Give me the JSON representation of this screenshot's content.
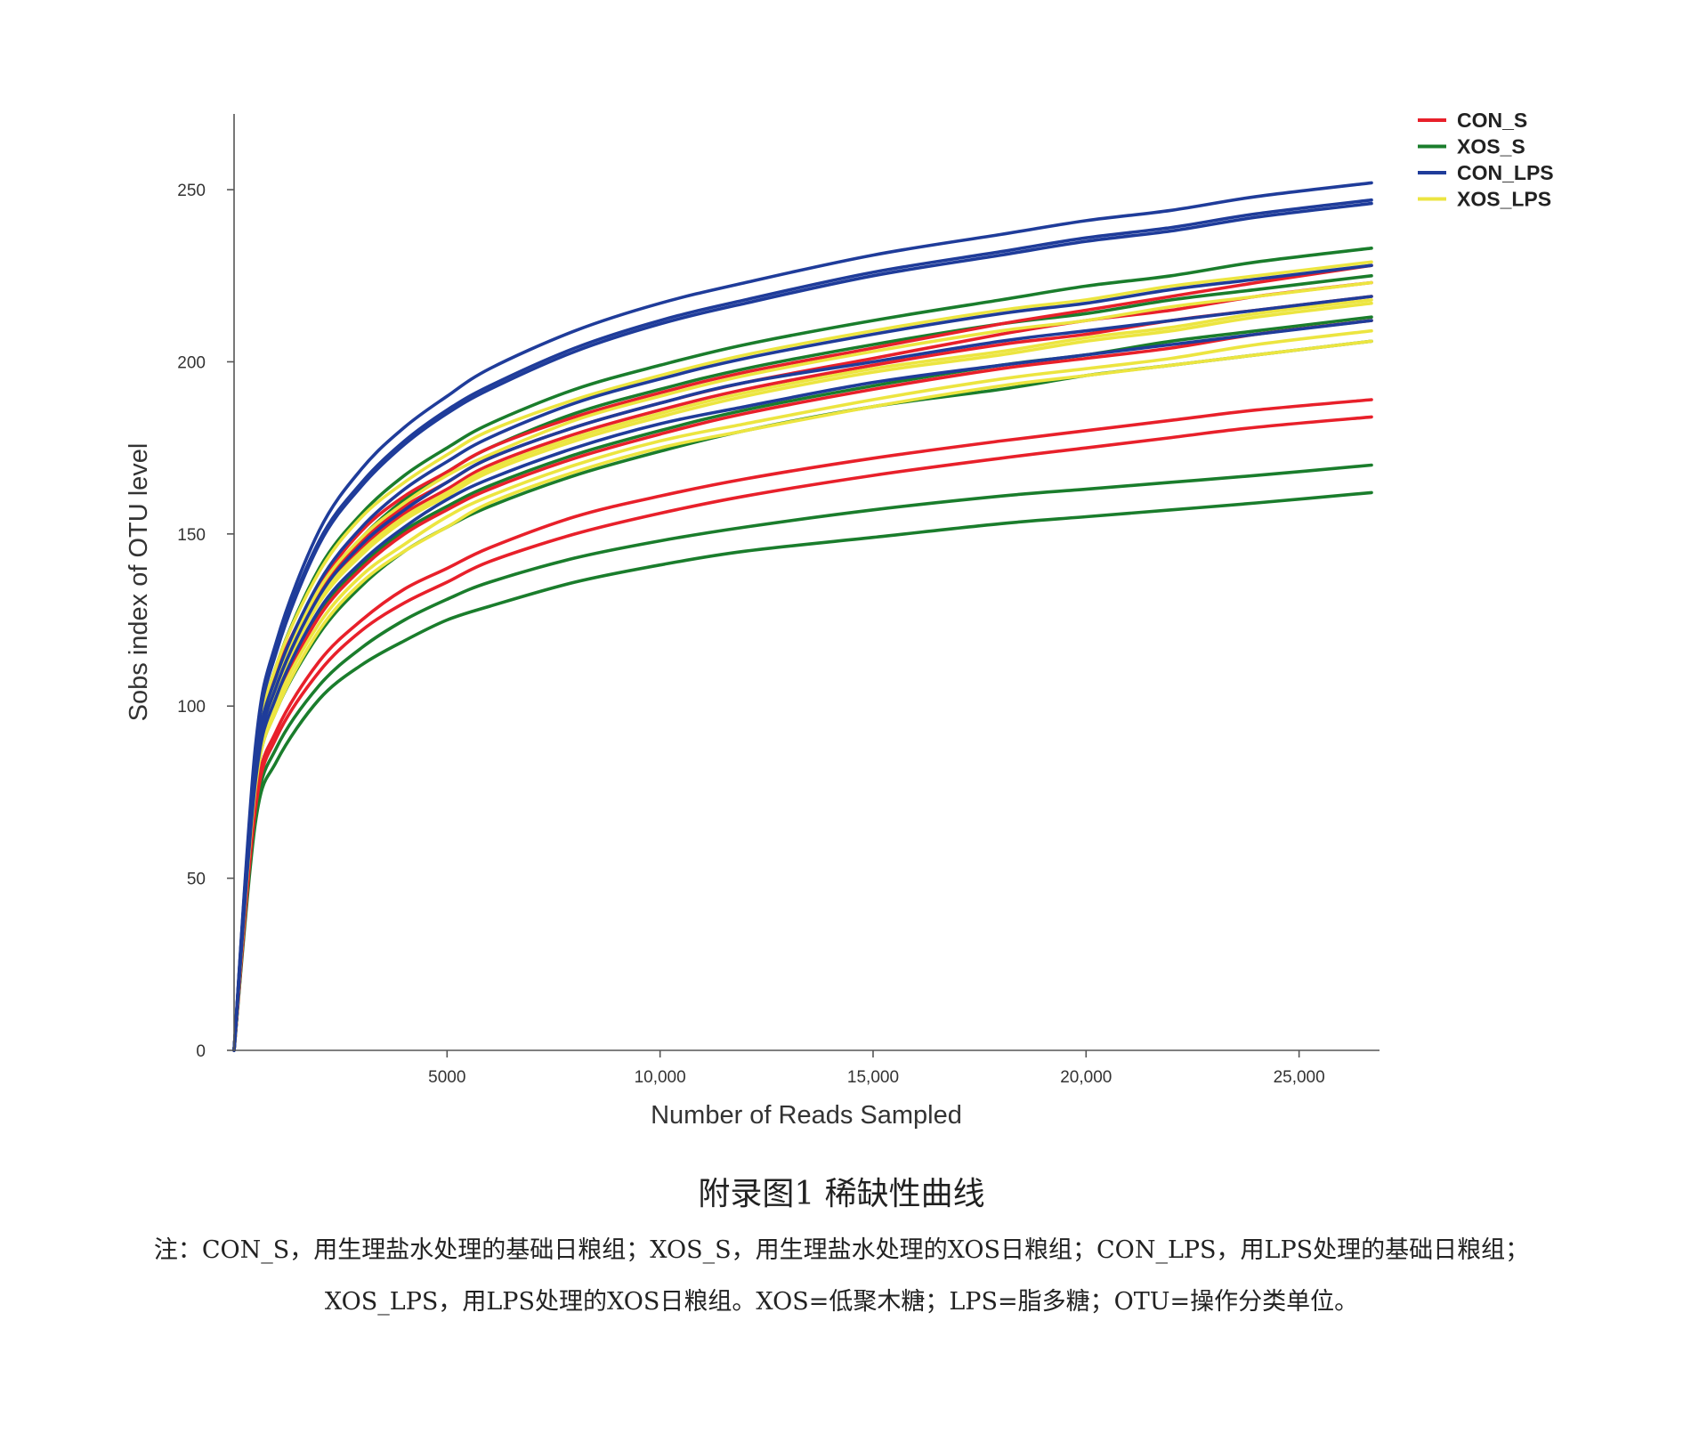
{
  "colors": {
    "CON_S": "#e8202a",
    "XOS_S": "#1a7d2c",
    "CON_LPS": "#1f3c9a",
    "XOS_LPS": "#ece540"
  },
  "chart_data": {
    "type": "line",
    "title": "",
    "xlabel": "Number of Reads Sampled",
    "ylabel": "Sobs index of OTU level",
    "xlim": [
      0,
      27000
    ],
    "ylim": [
      0,
      272
    ],
    "x_ticks": [
      5000,
      10000,
      15000,
      20000,
      25000
    ],
    "x_tick_labels": [
      "5000",
      "10,000",
      "15,000",
      "20,000",
      "25,000"
    ],
    "y_ticks": [
      0,
      50,
      100,
      150,
      200,
      250
    ],
    "y_tick_labels": [
      "0",
      "50",
      "100",
      "150",
      "200",
      "250"
    ],
    "grid": false,
    "legend_position": "top-right",
    "legend": [
      "CON_S",
      "XOS_S",
      "CON_LPS",
      "XOS_LPS"
    ],
    "x": [
      0,
      500,
      1000,
      2000,
      3000,
      4000,
      5000,
      6000,
      8000,
      10000,
      12000,
      15000,
      18000,
      20000,
      22000,
      24000,
      26700
    ],
    "series": [
      {
        "group": "CON_S",
        "values": [
          0,
          82,
          108,
          133,
          148,
          158,
          165,
          172,
          181,
          188,
          194,
          201,
          208,
          212,
          215,
          219,
          223
        ]
      },
      {
        "group": "CON_S",
        "values": [
          0,
          80,
          105,
          131,
          146,
          156,
          163,
          170,
          179,
          186,
          192,
          199,
          205,
          208,
          212,
          215,
          219
        ]
      },
      {
        "group": "CON_S",
        "values": [
          0,
          83,
          110,
          135,
          151,
          161,
          168,
          175,
          184,
          191,
          197,
          204,
          211,
          215,
          219,
          223,
          228
        ]
      },
      {
        "group": "CON_S",
        "values": [
          0,
          78,
          102,
          126,
          140,
          150,
          157,
          163,
          172,
          179,
          185,
          192,
          198,
          201,
          204,
          208,
          212
        ]
      },
      {
        "group": "CON_S",
        "values": [
          0,
          72,
          93,
          113,
          125,
          134,
          140,
          146,
          155,
          161,
          166,
          172,
          177,
          180,
          183,
          186,
          189
        ]
      },
      {
        "group": "CON_S",
        "values": [
          0,
          70,
          91,
          110,
          122,
          130,
          136,
          142,
          150,
          156,
          161,
          167,
          172,
          175,
          178,
          181,
          184
        ]
      },
      {
        "group": "XOS_S",
        "values": [
          0,
          84,
          112,
          140,
          156,
          167,
          175,
          182,
          192,
          199,
          205,
          212,
          218,
          222,
          225,
          229,
          233
        ]
      },
      {
        "group": "XOS_S",
        "values": [
          0,
          82,
          108,
          134,
          149,
          160,
          168,
          175,
          185,
          192,
          198,
          205,
          211,
          214,
          218,
          221,
          225
        ]
      },
      {
        "group": "XOS_S",
        "values": [
          0,
          79,
          103,
          127,
          141,
          151,
          158,
          164,
          173,
          180,
          186,
          193,
          199,
          202,
          206,
          209,
          213
        ]
      },
      {
        "group": "XOS_S",
        "values": [
          0,
          76,
          99,
          121,
          135,
          145,
          152,
          158,
          167,
          174,
          180,
          187,
          192,
          196,
          199,
          202,
          206
        ]
      },
      {
        "group": "XOS_S",
        "values": [
          0,
          68,
          88,
          106,
          117,
          125,
          131,
          136,
          143,
          148,
          152,
          157,
          161,
          163,
          165,
          167,
          170
        ]
      },
      {
        "group": "XOS_S",
        "values": [
          0,
          66,
          84,
          102,
          112,
          119,
          125,
          129,
          136,
          141,
          145,
          149,
          153,
          155,
          157,
          159,
          162
        ]
      },
      {
        "group": "CON_LPS",
        "values": [
          0,
          88,
          119,
          151,
          169,
          181,
          190,
          198,
          209,
          217,
          223,
          231,
          237,
          241,
          244,
          248,
          252
        ]
      },
      {
        "group": "CON_LPS",
        "values": [
          0,
          86,
          116,
          147,
          164,
          176,
          185,
          192,
          203,
          211,
          217,
          225,
          231,
          235,
          238,
          242,
          246
        ]
      },
      {
        "group": "CON_LPS",
        "values": [
          0,
          86,
          117,
          148,
          165,
          177,
          186,
          193,
          204,
          212,
          218,
          226,
          232,
          236,
          239,
          243,
          247
        ]
      },
      {
        "group": "CON_LPS",
        "values": [
          0,
          82,
          109,
          136,
          152,
          163,
          171,
          178,
          188,
          195,
          201,
          208,
          214,
          217,
          221,
          224,
          228
        ]
      },
      {
        "group": "CON_LPS",
        "values": [
          0,
          80,
          106,
          132,
          147,
          157,
          165,
          172,
          181,
          188,
          194,
          200,
          206,
          209,
          212,
          215,
          219
        ]
      },
      {
        "group": "CON_LPS",
        "values": [
          0,
          78,
          103,
          128,
          142,
          152,
          160,
          166,
          175,
          182,
          187,
          194,
          199,
          202,
          205,
          208,
          212
        ]
      },
      {
        "group": "XOS_LPS",
        "values": [
          0,
          84,
          112,
          139,
          155,
          165,
          173,
          180,
          189,
          196,
          202,
          209,
          215,
          218,
          222,
          225,
          229
        ]
      },
      {
        "group": "XOS_LPS",
        "values": [
          0,
          82,
          108,
          134,
          149,
          159,
          167,
          173,
          183,
          190,
          196,
          203,
          209,
          212,
          216,
          219,
          223
        ]
      },
      {
        "group": "XOS_LPS",
        "values": [
          0,
          80,
          105,
          130,
          144,
          154,
          161,
          168,
          177,
          184,
          190,
          197,
          202,
          206,
          209,
          213,
          217
        ]
      },
      {
        "group": "XOS_LPS",
        "values": [
          0,
          80,
          106,
          131,
          145,
          155,
          162,
          169,
          178,
          185,
          191,
          198,
          203,
          207,
          210,
          214,
          218
        ]
      },
      {
        "group": "XOS_LPS",
        "values": [
          0,
          77,
          101,
          124,
          138,
          147,
          155,
          161,
          170,
          177,
          182,
          189,
          195,
          198,
          201,
          205,
          209
        ]
      },
      {
        "group": "XOS_LPS",
        "values": [
          0,
          76,
          99,
          122,
          136,
          145,
          152,
          159,
          168,
          175,
          180,
          187,
          193,
          196,
          199,
          202,
          206
        ]
      }
    ]
  },
  "caption": {
    "title": "附录图1 稀缺性曲线",
    "note_line1": "注：CON_S，用生理盐水处理的基础日粮组；XOS_S，用生理盐水处理的XOS日粮组；CON_LPS，用LPS处理的基础日粮组；",
    "note_line2": "XOS_LPS，用LPS处理的XOS日粮组。XOS=低聚木糖；LPS=脂多糖；OTU=操作分类单位。"
  }
}
